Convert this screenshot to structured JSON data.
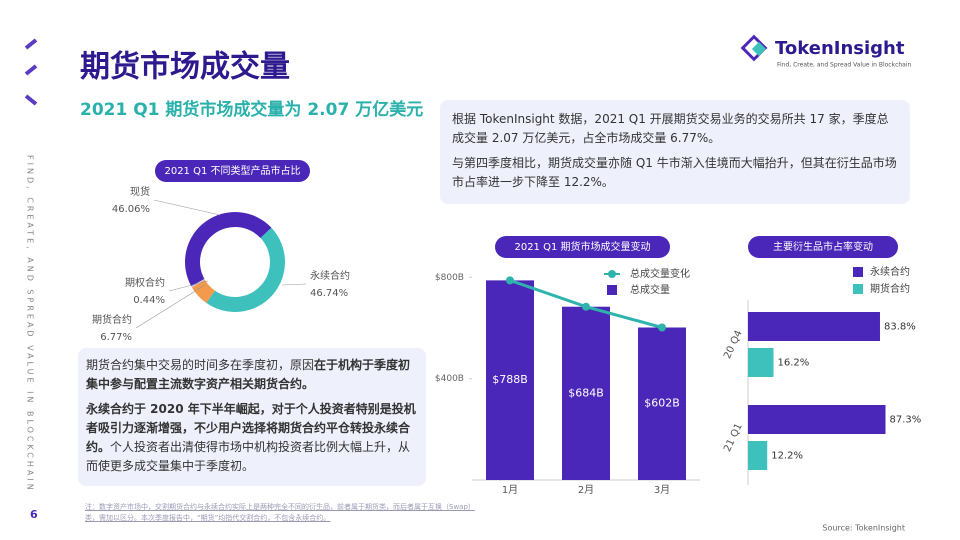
{
  "header": {
    "title": "期货市场成交量",
    "subtitle": "2021 Q1 期货市场成交量为 2.07 万亿美元",
    "logo": "TokenInsight",
    "tagline": "Find, Create, and Spread Value in Blockchain",
    "side_text": "FIND, CREATE, AND SPREAD VALUE IN BLOCKCHAIN",
    "page_number": "6"
  },
  "summary_box": {
    "paragraphs": [
      "根据 TokenInsight 数据，2021 Q1 开展期货交易业务的交易所共 17 家，季度总成交量 2.07 万亿美元，占全市场成交量 6.77%。",
      "与第四季度相比，期货成交量亦随 Q1 牛市渐入佳境而大幅抬升，但其在衍生品市场市占率进一步下降至 12.2%。"
    ]
  },
  "analysis_box": {
    "paragraphs": [
      [
        {
          "text": "期货合约集中交易的时间多在季度初，原因",
          "bold": false
        },
        {
          "text": "在于机构于季度初集中参与配置主流数字资产相关期货合约。",
          "bold": true
        }
      ],
      [
        {
          "text": "永续合约于 2020 年下半年崛起，对于个人投资者特别是投机者吸引力逐渐增强，不少用户选择将期货合约平仓转投永续合约。",
          "bold": true
        },
        {
          "text": "个人投资者出清使得市场中机构投资者比例大幅上升，从而使更多成交量集中于季度初。",
          "bold": false
        }
      ]
    ]
  },
  "footnote": "注：数字资产市场中，交割期货合约与永续合约实际上是两种完全不同的衍生品，前者属于期货类，而后者属于互换（Swap）类，需加以区分。本次季度报告中，“期货”均指代交割合约，不包含永续合约。",
  "source": "Source: TokenInsight",
  "chart_data": [
    {
      "type": "pie",
      "title": "2021 Q1 不同类型产品市占比",
      "donut": true,
      "categories": [
        "现货",
        "永续合约",
        "期货合约",
        "期权合约"
      ],
      "values": [
        46.06,
        46.74,
        6.77,
        0.44
      ],
      "value_labels": [
        "46.06%",
        "46.74%",
        "6.77%",
        "0.44%"
      ],
      "colors": [
        "#4a27b8",
        "#3ec1bd",
        "#f39a4c",
        "#c9c6dc"
      ]
    },
    {
      "type": "bar",
      "title": "2021 Q1 期货市场成交量变动",
      "categories": [
        "1月",
        "2月",
        "3月"
      ],
      "series": [
        {
          "name": "总成交量变化",
          "type": "line",
          "color": "#2fb3ad",
          "values": [
            788,
            684,
            602
          ]
        },
        {
          "name": "总成交量",
          "type": "bar",
          "color": "#4a27b8",
          "values": [
            788,
            684,
            602
          ],
          "value_labels": [
            "$788B",
            "$684B",
            "$602B"
          ]
        }
      ],
      "ylim": [
        0,
        900
      ],
      "yticks": [
        {
          "value": 400,
          "label": "$400B"
        },
        {
          "value": 800,
          "label": "$800B"
        }
      ]
    },
    {
      "type": "barh",
      "title": "主要衍生品市占率变动",
      "categories": [
        "20 Q4",
        "21 Q1"
      ],
      "series": [
        {
          "name": "永续合约",
          "color": "#4a27b8",
          "values": [
            83.8,
            87.3
          ],
          "value_labels": [
            "83.8%",
            "87.3%"
          ]
        },
        {
          "name": "期货合约",
          "color": "#3ec1bd",
          "values": [
            16.2,
            12.2
          ],
          "value_labels": [
            "16.2%",
            "12.2%"
          ]
        }
      ],
      "xlim": [
        0,
        100
      ]
    }
  ]
}
